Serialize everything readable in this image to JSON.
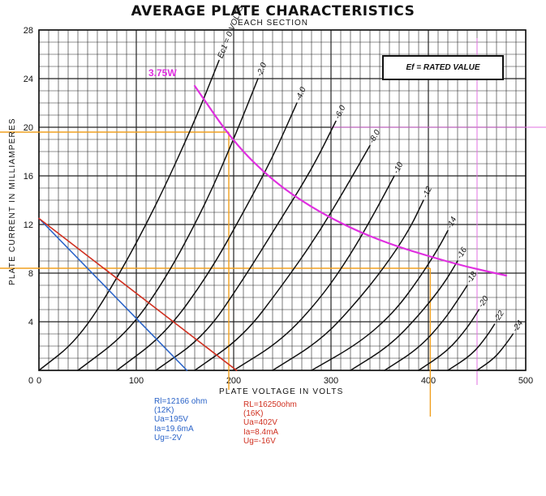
{
  "chart_data": {
    "type": "line",
    "title": "AVERAGE PLATE CHARACTERISTICS",
    "subtitle": "EACH SECTION",
    "xlabel": "PLATE VOLTAGE IN VOLTS",
    "ylabel": "PLATE CURRENT IN MILLIAMPERES",
    "xlim": [
      0,
      500
    ],
    "ylim": [
      0,
      28
    ],
    "xticks": [
      0,
      100,
      200,
      300,
      400,
      500
    ],
    "yticks": [
      4,
      8,
      12,
      16,
      20,
      24,
      28
    ],
    "grid": true,
    "annotation_box": "Ef = RATED VALUE",
    "series": [
      {
        "name": "Ec1 = 0 VOLTS",
        "x": [
          0,
          40,
          80,
          120,
          160,
          185
        ],
        "y": [
          0,
          2.5,
          7.5,
          13.5,
          20.5,
          25.5
        ]
      },
      {
        "name": "-2.0",
        "x": [
          40,
          90,
          130,
          170,
          200,
          225
        ],
        "y": [
          0,
          3,
          7.5,
          13.5,
          19,
          24
        ]
      },
      {
        "name": "-4.0",
        "x": [
          80,
          130,
          175,
          210,
          240,
          265
        ],
        "y": [
          0,
          3,
          8,
          13,
          17.5,
          22
        ]
      },
      {
        "name": "-6.0",
        "x": [
          120,
          170,
          210,
          245,
          280,
          305
        ],
        "y": [
          0,
          2.8,
          7.5,
          12,
          16.5,
          20.5
        ]
      },
      {
        "name": "-8.0",
        "x": [
          160,
          210,
          250,
          285,
          315,
          340
        ],
        "y": [
          0,
          2.8,
          7,
          11,
          15,
          18.5
        ]
      },
      {
        "name": "-10",
        "x": [
          200,
          250,
          290,
          320,
          345,
          365
        ],
        "y": [
          0,
          2.5,
          6,
          9.5,
          13,
          16
        ]
      },
      {
        "name": "-12",
        "x": [
          240,
          290,
          325,
          355,
          380,
          395
        ],
        "y": [
          0,
          2.5,
          5.5,
          8.5,
          11.5,
          14
        ]
      },
      {
        "name": "-14",
        "x": [
          280,
          330,
          365,
          390,
          410,
          420
        ],
        "y": [
          0,
          2.3,
          4.8,
          7.5,
          10,
          11.5
        ]
      },
      {
        "name": "-16",
        "x": [
          320,
          360,
          390,
          415,
          430
        ],
        "y": [
          0,
          2,
          4.5,
          7,
          9
        ]
      },
      {
        "name": "-18",
        "x": [
          355,
          390,
          415,
          432,
          440
        ],
        "y": [
          0,
          1.8,
          4,
          6,
          7
        ]
      },
      {
        "name": "-20",
        "x": [
          390,
          420,
          440,
          452
        ],
        "y": [
          0,
          1.6,
          3.5,
          5
        ]
      },
      {
        "name": "-22",
        "x": [
          420,
          445,
          460,
          468
        ],
        "y": [
          0,
          1.3,
          2.8,
          3.8
        ]
      },
      {
        "name": "-24",
        "x": [
          450,
          468,
          480,
          487
        ],
        "y": [
          0,
          1,
          2.2,
          3
        ]
      },
      {
        "name": "3.75W",
        "x": [
          160,
          200,
          240,
          280,
          320,
          360,
          400,
          440,
          480
        ],
        "y": [
          23.4,
          18.75,
          15.6,
          13.4,
          11.7,
          10.4,
          9.4,
          8.5,
          7.8
        ]
      },
      {
        "name": "Rl=12166 ohm",
        "x": [
          0,
          152
        ],
        "y": [
          12.5,
          0
        ]
      },
      {
        "name": "RL=16250ohm",
        "x": [
          0,
          203
        ],
        "y": [
          12.5,
          0
        ]
      }
    ],
    "curve_labels": [
      "Ec1 = 0 VOLTS",
      "-2.0",
      "-4.0",
      "-6.0",
      "-8.0",
      "-10",
      "-12",
      "-14",
      "-16",
      "-18",
      "-20",
      "-22",
      "-24"
    ],
    "load_power_label": "3.75W",
    "operating_points": [
      {
        "Ua": 195,
        "Ia": 19.6
      },
      {
        "Ua": 402,
        "Ia": 8.4
      }
    ],
    "ref_line_x": 450,
    "ref_line_y": 20,
    "colors": {
      "grid": "#222222",
      "curves": "#111111",
      "load_power": "#e02fe0",
      "load_blue": "#2a63c8",
      "load_red": "#d03020",
      "orange": "#f0a020",
      "pink": "#e070e0"
    }
  },
  "notes": {
    "blue": [
      "Rl=12166 ohm",
      "(12K)",
      "Ua=195V",
      "Ia=19.6mA",
      "Ug=-2V"
    ],
    "red": [
      "RL=16250ohm",
      "(16K)",
      "Ua=402V",
      "Ia=8.4mA",
      "Ug=-16V"
    ]
  }
}
